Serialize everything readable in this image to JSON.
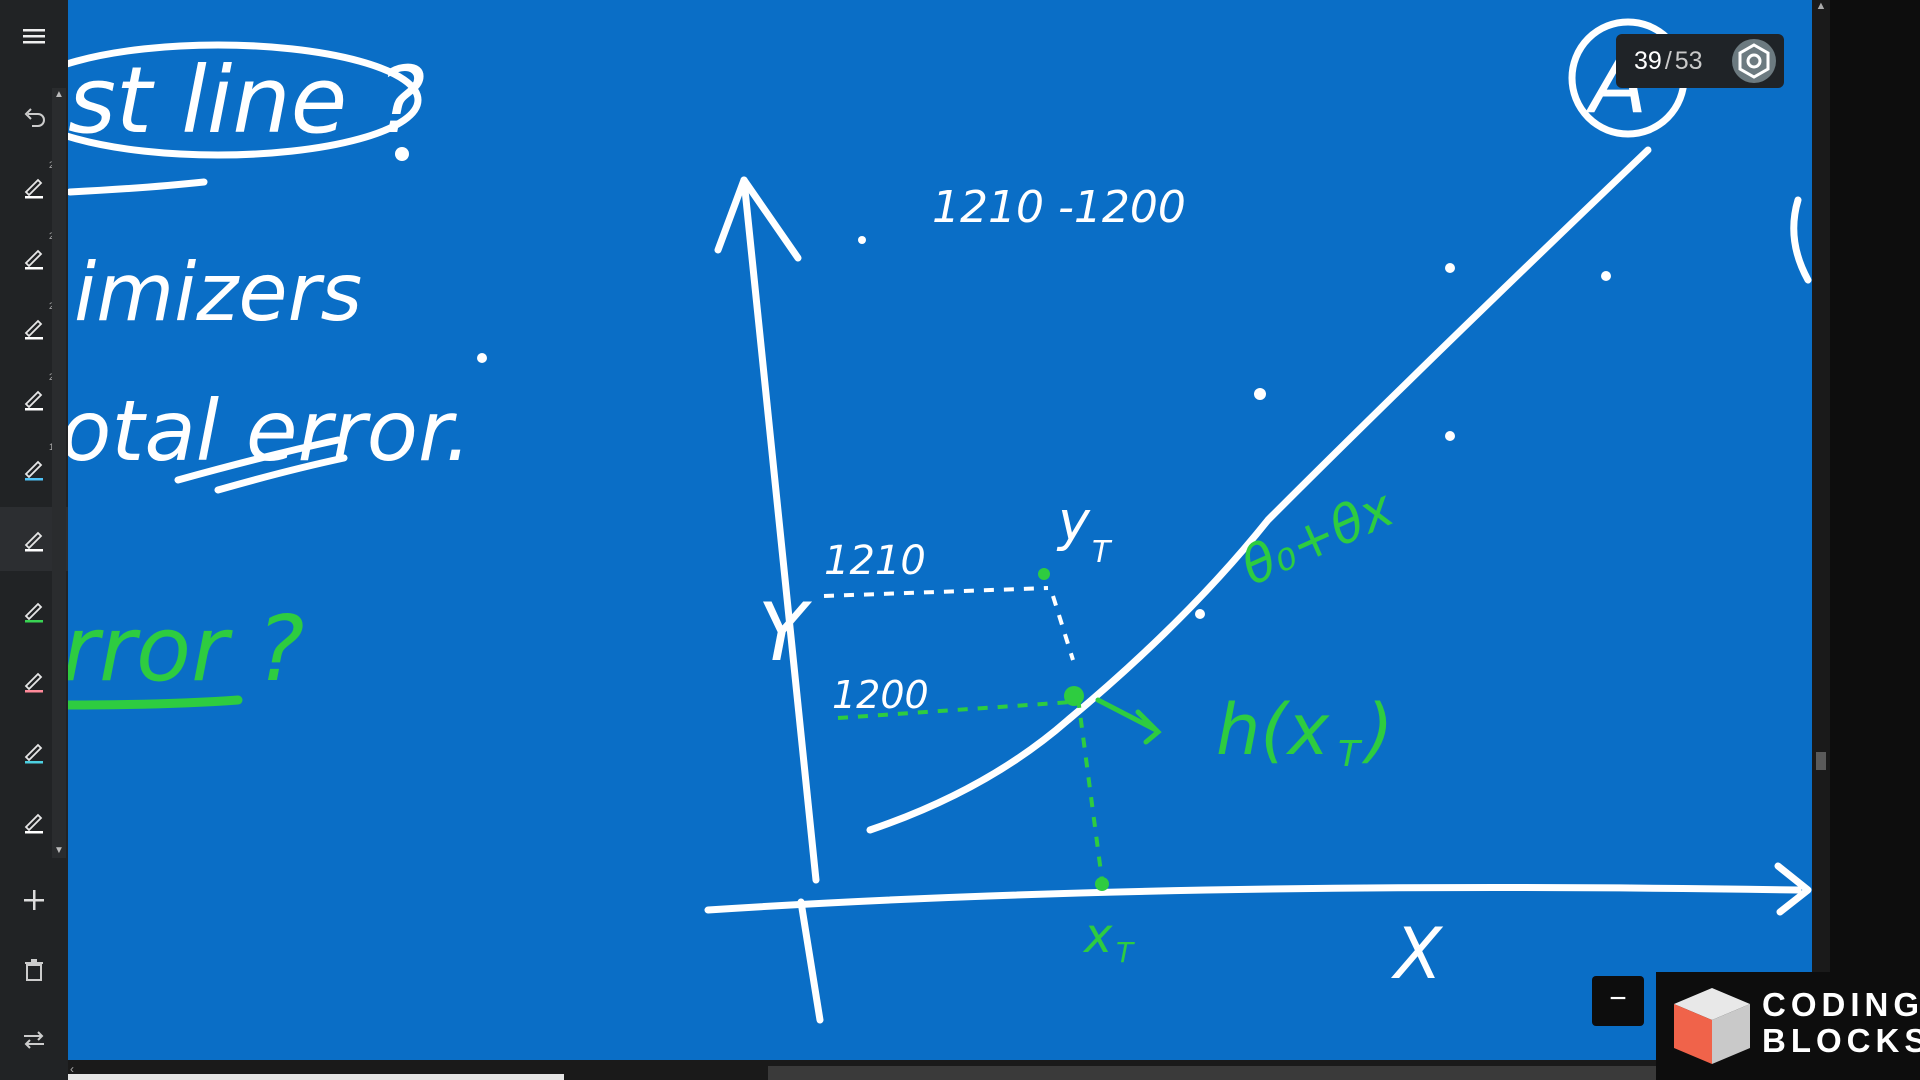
{
  "toolbar": {
    "items": [
      {
        "name": "menu-icon"
      },
      {
        "name": "undo-icon"
      },
      {
        "name": "pen-icon",
        "badge": "2",
        "color": "#ffffff"
      },
      {
        "name": "pen-icon",
        "badge": "2",
        "color": "#ffffff"
      },
      {
        "name": "pen-icon",
        "badge": "2",
        "color": "#ffffff"
      },
      {
        "name": "pen-icon",
        "badge": "2",
        "color": "#ffffff"
      },
      {
        "name": "pen-icon",
        "badge": "1",
        "color": "#4fc3f7"
      },
      {
        "name": "pen-icon",
        "badge": "",
        "color": "#ffffff"
      },
      {
        "name": "pen-icon",
        "badge": "",
        "color": "#39d353"
      },
      {
        "name": "pen-icon",
        "badge": "",
        "color": "#ff8a9a"
      },
      {
        "name": "pen-icon",
        "badge": "",
        "color": "#4dd0e1"
      },
      {
        "name": "pen-icon",
        "badge": "",
        "color": "#ffffff"
      },
      {
        "name": "add-icon"
      },
      {
        "name": "trash-icon"
      },
      {
        "name": "swap-icon"
      }
    ]
  },
  "page_counter": {
    "current": "39",
    "separator": "/",
    "total": "53"
  },
  "whiteboard": {
    "left_texts": [
      "st line ?",
      "imizers",
      "otal error.",
      "rror ?"
    ],
    "annotations": {
      "top_label": "1210 -1200",
      "label_1210": "1210",
      "label_1200": "1200",
      "y_axis": "Y",
      "x_axis": "X",
      "y_t": "y",
      "y_t_sub": "T",
      "x_t": "x",
      "x_t_sub": "T",
      "h_x": "h(x",
      "h_x_sub": "T",
      "h_x_close": ")",
      "equation": "θ₀+θx",
      "corner_letter": "A"
    }
  },
  "zoom": {
    "minus_label": "−"
  },
  "logo": {
    "line1": "CODING",
    "line2": "BLOCKS"
  },
  "colors": {
    "board": "#0a6ec6",
    "ink_white": "#ffffff",
    "ink_green": "#2ecc40",
    "toolbar": "#212325"
  }
}
